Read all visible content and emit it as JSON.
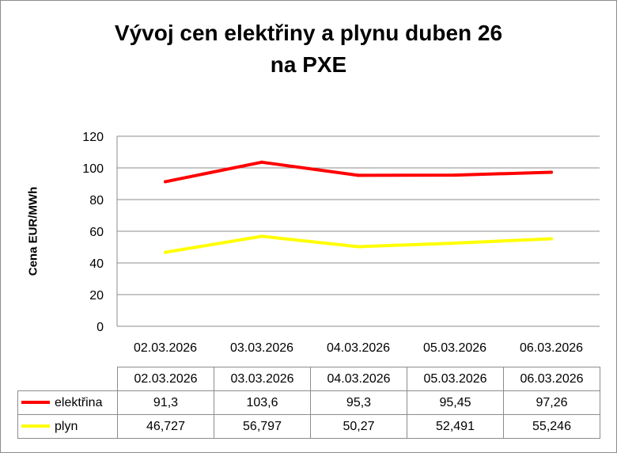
{
  "chart_data": {
    "type": "line",
    "title_line1": "Vývoj cen elektřiny a plynu duben 26",
    "title_line2": "na PXE",
    "ylabel": "Cena EUR/MWh",
    "xlabel": "",
    "ylim": [
      0,
      120
    ],
    "yticks": [
      "0",
      "20",
      "40",
      "60",
      "80",
      "100",
      "120"
    ],
    "grid": true,
    "categories": [
      "02.03.2026",
      "03.03.2026",
      "04.03.2026",
      "05.03.2026",
      "06.03.2026"
    ],
    "series": [
      {
        "name": "elektřina",
        "color": "#ff0000",
        "values": [
          91.3,
          103.6,
          95.3,
          95.45,
          97.26
        ],
        "labels": [
          "91,3",
          "103,6",
          "95,3",
          "95,45",
          "97,26"
        ]
      },
      {
        "name": "plyn",
        "color": "#ffff00",
        "values": [
          46.727,
          56.797,
          50.27,
          52.491,
          55.246
        ],
        "labels": [
          "46,727",
          "56,797",
          "50,27",
          "52,491",
          "55,246"
        ]
      }
    ],
    "legend_placement": "data-table"
  }
}
